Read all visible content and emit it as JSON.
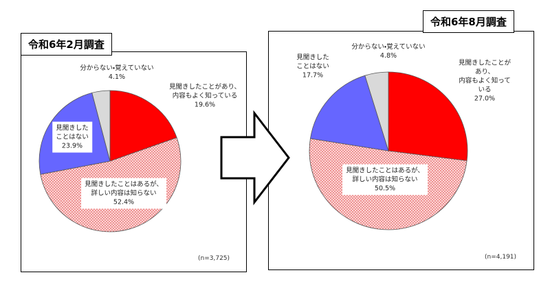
{
  "chart_data": [
    {
      "type": "pie",
      "title": "令和6年2月調査",
      "note": "(n=3,725)",
      "categories": [
        "見聞きしたことがあり、\n内容もよく知っている",
        "見聞きしたことはあるが、\n詳しい内容は知らない",
        "見聞きした\nことはない",
        "分からない・覚えていない"
      ],
      "values": [
        19.6,
        52.4,
        23.9,
        4.1
      ],
      "value_labels": [
        "19.6%",
        "52.4%",
        "23.9%",
        "4.1%"
      ],
      "colors": [
        "#ff0000",
        "#f7b3b3",
        "#6666ff",
        "#d9d9d9"
      ]
    },
    {
      "type": "pie",
      "title": "令和6年8月調査",
      "note": "(n=4,191)",
      "categories": [
        "見聞きしたことがあり、\n内容もよく知っている",
        "見聞きしたことはあるが、\n詳しい内容は知らない",
        "見聞きした\nことはない",
        "分からない・覚えていない"
      ],
      "values": [
        27.0,
        50.5,
        17.7,
        4.8
      ],
      "value_labels": [
        "27.0%",
        "50.5%",
        "17.7%",
        "4.8%"
      ],
      "colors": [
        "#ff0000",
        "#f7b3b3",
        "#6666ff",
        "#d9d9d9"
      ]
    }
  ]
}
